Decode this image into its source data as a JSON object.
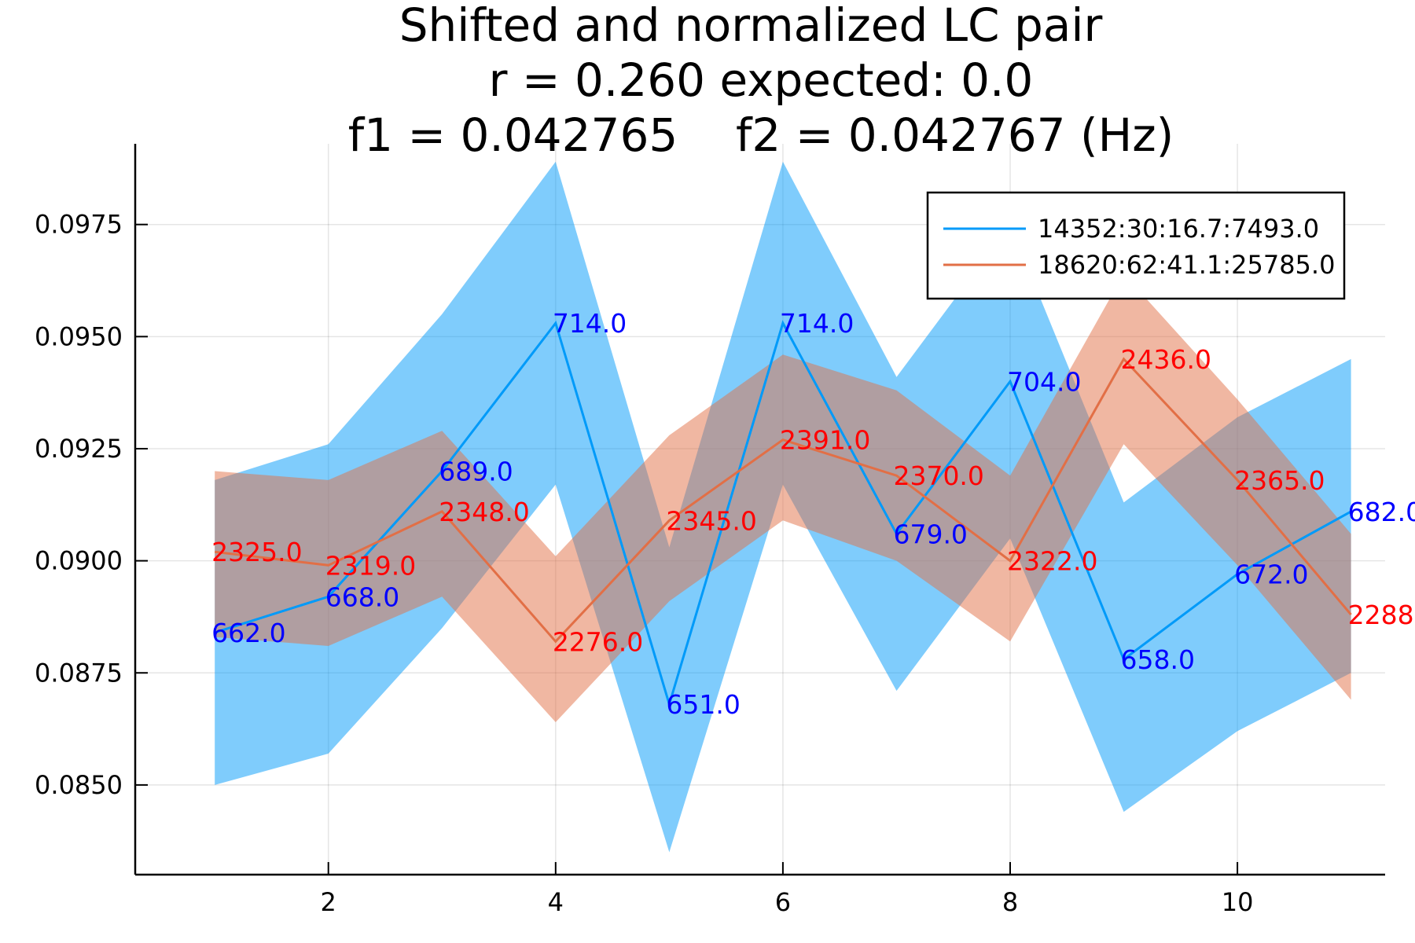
{
  "chart_data": {
    "type": "line",
    "title_lines": [
      "Shifted and normalized LC pair",
      "r = 0.260 expected: 0.0",
      "f1 = 0.042765    f2 = 0.042767 (Hz)"
    ],
    "xlabel": "",
    "ylabel": "",
    "xlim": [
      0.3,
      11.3
    ],
    "ylim": [
      0.083,
      0.0993
    ],
    "x_ticks": [
      2,
      4,
      6,
      8,
      10
    ],
    "x_tick_labels": [
      "2",
      "4",
      "6",
      "8",
      "10"
    ],
    "y_ticks": [
      0.085,
      0.0875,
      0.09,
      0.0925,
      0.095,
      0.0975
    ],
    "y_tick_labels": [
      "0.0850",
      "0.0875",
      "0.0900",
      "0.0925",
      "0.0950",
      "0.0975"
    ],
    "grid": true,
    "legend_position": "top-right",
    "x": [
      1,
      2,
      3,
      4,
      5,
      6,
      7,
      8,
      9,
      10,
      11
    ],
    "series": [
      {
        "name": "14352:30:16.7:7493.0",
        "color": "#009af9",
        "band_color": "#009af9",
        "label_color": "#0000ff",
        "values": [
          0.0884,
          0.0892,
          0.092,
          0.0953,
          0.0868,
          0.0953,
          0.0906,
          0.094,
          0.0878,
          0.0897,
          0.0911
        ],
        "lower": [
          0.085,
          0.0857,
          0.0885,
          0.0917,
          0.0835,
          0.0917,
          0.0871,
          0.0905,
          0.0844,
          0.0862,
          0.0875
        ],
        "upper": [
          0.0918,
          0.0926,
          0.0955,
          0.0989,
          0.0903,
          0.0989,
          0.0941,
          0.0975,
          0.0913,
          0.0932,
          0.0945
        ],
        "point_labels": [
          "662.0",
          "668.0",
          "689.0",
          "714.0",
          "651.0",
          "714.0",
          "679.0",
          "704.0",
          "658.0",
          "672.0",
          "682.0"
        ]
      },
      {
        "name": "18620:62:41.1:25785.0",
        "color": "#e26f46",
        "band_color": "#e26f46",
        "label_color": "#ff0000",
        "values": [
          0.0902,
          0.0899,
          0.0911,
          0.0882,
          0.0909,
          0.0927,
          0.0919,
          0.09,
          0.0945,
          0.0918,
          0.0888
        ],
        "lower": [
          0.0883,
          0.0881,
          0.0892,
          0.0864,
          0.0891,
          0.0909,
          0.09,
          0.0882,
          0.0926,
          0.0899,
          0.0869
        ],
        "upper": [
          0.092,
          0.0918,
          0.0929,
          0.0901,
          0.0928,
          0.0946,
          0.0938,
          0.0919,
          0.0964,
          0.0936,
          0.0906
        ],
        "point_labels": [
          "2325.0",
          "2319.0",
          "2348.0",
          "2276.0",
          "2345.0",
          "2391.0",
          "2370.0",
          "2322.0",
          "2436.0",
          "2365.0",
          "2288.0"
        ]
      }
    ]
  }
}
